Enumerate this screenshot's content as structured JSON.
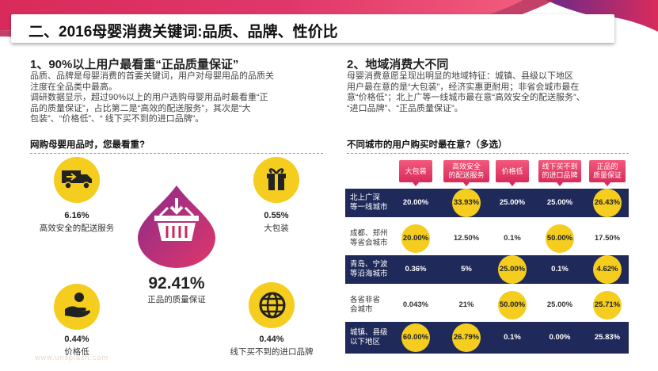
{
  "title": "二、2016母婴消费关键词:品质、品牌、性价比",
  "left": {
    "heading": "1、90%以上用户最看重“正品质量保证”",
    "paragraph_lines": [
      "品质、品牌是母婴消费的首要关键词，用户对母婴用品的品质关",
      "注度在全品类中最高。",
      "调研数据显示，超过90%以上的用户选购母婴用品时最看重“正",
      "品的质量保证”，占比第二是“高效的配送服务”，其次是“大",
      "包装”、“价格低”、“ 线下买不到的进口品牌”。"
    ],
    "subheading": "网购母婴用品时，您最看重?",
    "items": [
      {
        "value": "6.16%",
        "label": "高效安全的配送服务",
        "icon": "delivery-truck-icon"
      },
      {
        "value": "0.55%",
        "label": "大包装",
        "icon": "gift-box-icon"
      },
      {
        "value": "92.41%",
        "label": "正品的质量保证",
        "icon": "shopping-basket-icon"
      },
      {
        "value": "0.44%",
        "label": "价格低",
        "icon": "hand-money-icon"
      },
      {
        "value": "0.44%",
        "label": "线下买不到的进口品牌",
        "icon": "globe-icon"
      }
    ]
  },
  "right": {
    "heading": "2、地域消费大不同",
    "paragraph_lines": [
      "母婴消费意愿呈现出明显的地域特征：城镇、县级以下地区",
      "用户最在意的是“大包装”，经济实惠更耐用；非省会城市最在",
      "意“价格低”；北上广等一线城市最在意“高效安全的配送服务”、",
      "“进口品牌”、“正品质量保证”。"
    ],
    "subheading": "不同城市的用户购买时最在意?（多选）",
    "columns": [
      [
        "大包装"
      ],
      [
        "高效安全",
        "的配送服务"
      ],
      [
        "价格低"
      ],
      [
        "线下买不到",
        "的进口品牌"
      ],
      [
        "正品的",
        "质量保证"
      ]
    ],
    "rows": [
      {
        "city": [
          "北上广深",
          "等一线城市"
        ],
        "values": [
          "20.00%",
          "33.93%",
          "25.00%",
          "25.00%",
          "26.43%"
        ],
        "highlight": [
          1,
          4
        ]
      },
      {
        "city": [
          "成都、郑州",
          "等省会城市"
        ],
        "values": [
          "20.00%",
          "12.50%",
          "0.1%",
          "50.00%",
          "17.50%"
        ],
        "highlight": [
          0,
          3
        ]
      },
      {
        "city": [
          "青岛、宁波",
          "等沿海城市"
        ],
        "values": [
          "0.36%",
          "5%",
          "25.00%",
          "0.1%",
          "4.62%"
        ],
        "highlight": [
          2,
          4
        ]
      },
      {
        "city": [
          "各省非省",
          "会城市"
        ],
        "values": [
          "0.043%",
          "21%",
          "50.00%",
          "25.00%",
          "25.71%"
        ],
        "highlight": [
          2,
          4
        ]
      },
      {
        "city": [
          "城镇、县级",
          "以下地区"
        ],
        "values": [
          "60.00%",
          "26.79%",
          "0.1%",
          "0.00%",
          "25.83%"
        ],
        "highlight": [
          0,
          1
        ]
      }
    ]
  },
  "colors": {
    "accent": "#d92b5b",
    "yellow": "#f4cd1f",
    "navy": "#1f2a5a",
    "orange": "#f08a24"
  }
}
